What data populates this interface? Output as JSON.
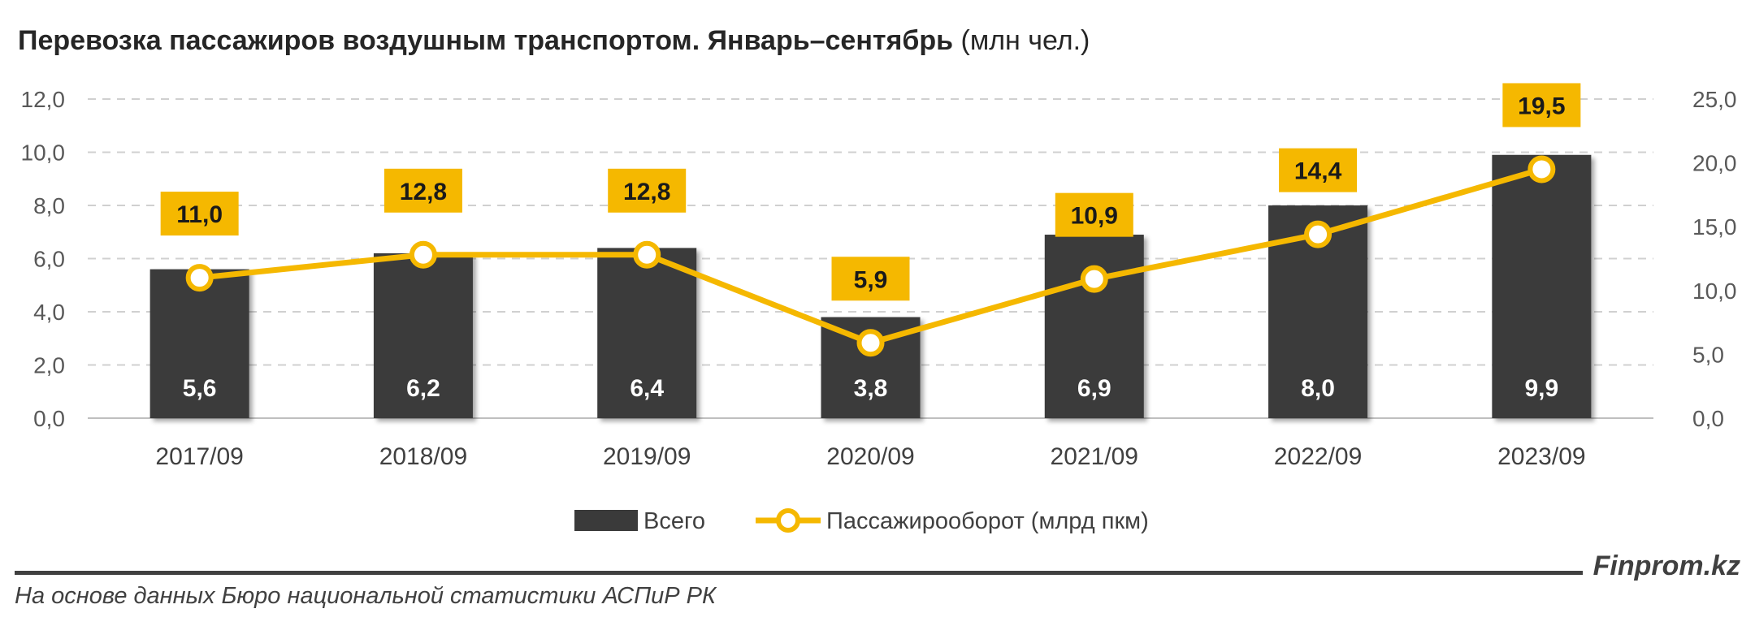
{
  "title": {
    "main": "Перевозка пассажиров воздушным транспортом. Январь–сентябрь",
    "unit": "(млн чел.)"
  },
  "chart_data": {
    "type": "bar",
    "categories": [
      "2017/09",
      "2018/09",
      "2019/09",
      "2020/09",
      "2021/09",
      "2022/09",
      "2023/09"
    ],
    "series": [
      {
        "name": "Всего",
        "type": "bar",
        "axis": "left",
        "values": [
          5.6,
          6.2,
          6.4,
          3.8,
          6.9,
          8.0,
          9.9
        ],
        "labels": [
          "5,6",
          "6,2",
          "6,4",
          "3,8",
          "6,9",
          "8,0",
          "9,9"
        ]
      },
      {
        "name": "Пассажирооборот (млрд пкм)",
        "type": "line",
        "axis": "right",
        "values": [
          11.0,
          12.8,
          12.8,
          5.9,
          10.9,
          14.4,
          19.5
        ],
        "labels": [
          "11,0",
          "12,8",
          "12,8",
          "5,9",
          "10,9",
          "14,4",
          "19,5"
        ]
      }
    ],
    "y_left": {
      "range": [
        0,
        12
      ],
      "ticks": [
        "0,0",
        "2,0",
        "4,0",
        "6,0",
        "8,0",
        "10,0",
        "12,0"
      ]
    },
    "y_right": {
      "range": [
        0,
        25
      ],
      "ticks": [
        "0,0",
        "5,0",
        "10,0",
        "15,0",
        "20,0",
        "25,0"
      ]
    },
    "grid": true,
    "legend_position": "bottom"
  },
  "colors": {
    "bar": "#3a3a3a",
    "line": "#f5b800",
    "label_box": "#f5b800",
    "grid": "#d0d0d0"
  },
  "footer": {
    "source": "На основе данных Бюро национальной статистики АСПиР РК",
    "brand": "Finprom.kz"
  }
}
